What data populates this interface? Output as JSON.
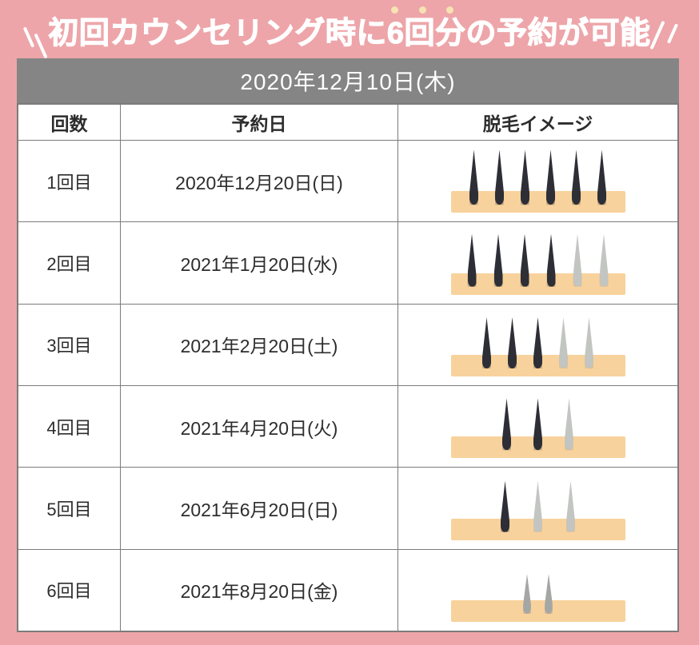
{
  "theme": {
    "bg-pink": "#eda5a9",
    "bar-gray": "#858585",
    "border-gray": "#7b7b7b",
    "text-dark": "#2d2d2d",
    "title-white": "#ffffff",
    "dot-cream": "#f6e2b2",
    "skin": "#f8d29c",
    "hair-dark": "#2d2e36",
    "hair-gray": "#c2c5c1",
    "hair-gray-dark": "#a4a7a4"
  },
  "header": {
    "title": "初回カウンセリング時に6回分の予約が可能",
    "date": "2020年12月10日(木)"
  },
  "icons": {
    "left_decoration": "emphasis-backslash-lines",
    "right_decoration": "emphasis-slash-lines",
    "accent_dots": "three-cream-dots"
  },
  "table": {
    "columns": [
      "回数",
      "予約日",
      "脱毛イメージ"
    ],
    "rows": [
      {
        "count": "1回目",
        "date": "2020年12月20日(日)",
        "hairs": [
          "dark",
          "dark",
          "dark",
          "dark",
          "dark",
          "dark"
        ],
        "hair_height": 69,
        "hair_gap": 21,
        "hair_width": 11
      },
      {
        "count": "2回目",
        "date": "2021年1月20日(水)",
        "hairs": [
          "dark",
          "dark",
          "dark",
          "dark",
          "gray",
          "gray"
        ],
        "hair_height": 66,
        "hair_gap": 22,
        "hair_width": 11
      },
      {
        "count": "3回目",
        "date": "2021年2月20日(土)",
        "hairs": [
          "dark",
          "dark",
          "dark",
          "gray",
          "gray"
        ],
        "hair_height": 64,
        "hair_gap": 21,
        "hair_width": 11
      },
      {
        "count": "4回目",
        "date": "2021年4月20日(火)",
        "hairs": [
          "dark",
          "dark",
          "gray"
        ],
        "hair_height": 65,
        "hair_gap": 28,
        "hair_width": 11
      },
      {
        "count": "5回目",
        "date": "2021年6月20日(日)",
        "hairs": [
          "dark",
          "gray",
          "gray"
        ],
        "hair_height": 64,
        "hair_gap": 30,
        "hair_width": 11
      },
      {
        "count": "6回目",
        "date": "2021年8月20日(金)",
        "hairs": [
          "gray-dark",
          "gray-dark"
        ],
        "hair_height": 50,
        "hair_gap": 17,
        "hair_width": 10
      }
    ]
  }
}
